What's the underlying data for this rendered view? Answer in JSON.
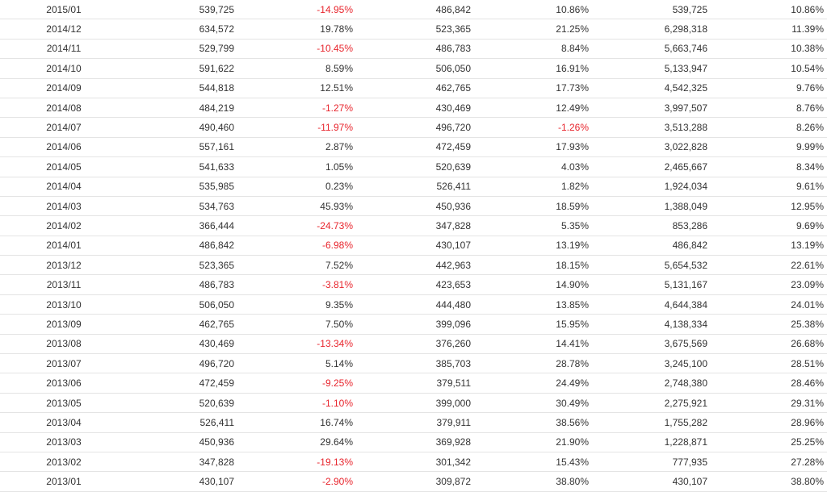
{
  "colors": {
    "text": "#333333",
    "negative": "#e8252d",
    "row_border": "#e4e4e4"
  },
  "rows": [
    {
      "month": "2015/01",
      "v1": "539,725",
      "p1": "-14.95%",
      "v2": "486,842",
      "p2": "10.86%",
      "v3": "539,725",
      "p3": "10.86%"
    },
    {
      "month": "2014/12",
      "v1": "634,572",
      "p1": "19.78%",
      "v2": "523,365",
      "p2": "21.25%",
      "v3": "6,298,318",
      "p3": "11.39%"
    },
    {
      "month": "2014/11",
      "v1": "529,799",
      "p1": "-10.45%",
      "v2": "486,783",
      "p2": "8.84%",
      "v3": "5,663,746",
      "p3": "10.38%"
    },
    {
      "month": "2014/10",
      "v1": "591,622",
      "p1": "8.59%",
      "v2": "506,050",
      "p2": "16.91%",
      "v3": "5,133,947",
      "p3": "10.54%"
    },
    {
      "month": "2014/09",
      "v1": "544,818",
      "p1": "12.51%",
      "v2": "462,765",
      "p2": "17.73%",
      "v3": "4,542,325",
      "p3": "9.76%"
    },
    {
      "month": "2014/08",
      "v1": "484,219",
      "p1": "-1.27%",
      "v2": "430,469",
      "p2": "12.49%",
      "v3": "3,997,507",
      "p3": "8.76%"
    },
    {
      "month": "2014/07",
      "v1": "490,460",
      "p1": "-11.97%",
      "v2": "496,720",
      "p2": "-1.26%",
      "v3": "3,513,288",
      "p3": "8.26%"
    },
    {
      "month": "2014/06",
      "v1": "557,161",
      "p1": "2.87%",
      "v2": "472,459",
      "p2": "17.93%",
      "v3": "3,022,828",
      "p3": "9.99%"
    },
    {
      "month": "2014/05",
      "v1": "541,633",
      "p1": "1.05%",
      "v2": "520,639",
      "p2": "4.03%",
      "v3": "2,465,667",
      "p3": "8.34%"
    },
    {
      "month": "2014/04",
      "v1": "535,985",
      "p1": "0.23%",
      "v2": "526,411",
      "p2": "1.82%",
      "v3": "1,924,034",
      "p3": "9.61%"
    },
    {
      "month": "2014/03",
      "v1": "534,763",
      "p1": "45.93%",
      "v2": "450,936",
      "p2": "18.59%",
      "v3": "1,388,049",
      "p3": "12.95%"
    },
    {
      "month": "2014/02",
      "v1": "366,444",
      "p1": "-24.73%",
      "v2": "347,828",
      "p2": "5.35%",
      "v3": "853,286",
      "p3": "9.69%"
    },
    {
      "month": "2014/01",
      "v1": "486,842",
      "p1": "-6.98%",
      "v2": "430,107",
      "p2": "13.19%",
      "v3": "486,842",
      "p3": "13.19%"
    },
    {
      "month": "2013/12",
      "v1": "523,365",
      "p1": "7.52%",
      "v2": "442,963",
      "p2": "18.15%",
      "v3": "5,654,532",
      "p3": "22.61%"
    },
    {
      "month": "2013/11",
      "v1": "486,783",
      "p1": "-3.81%",
      "v2": "423,653",
      "p2": "14.90%",
      "v3": "5,131,167",
      "p3": "23.09%"
    },
    {
      "month": "2013/10",
      "v1": "506,050",
      "p1": "9.35%",
      "v2": "444,480",
      "p2": "13.85%",
      "v3": "4,644,384",
      "p3": "24.01%"
    },
    {
      "month": "2013/09",
      "v1": "462,765",
      "p1": "7.50%",
      "v2": "399,096",
      "p2": "15.95%",
      "v3": "4,138,334",
      "p3": "25.38%"
    },
    {
      "month": "2013/08",
      "v1": "430,469",
      "p1": "-13.34%",
      "v2": "376,260",
      "p2": "14.41%",
      "v3": "3,675,569",
      "p3": "26.68%"
    },
    {
      "month": "2013/07",
      "v1": "496,720",
      "p1": "5.14%",
      "v2": "385,703",
      "p2": "28.78%",
      "v3": "3,245,100",
      "p3": "28.51%"
    },
    {
      "month": "2013/06",
      "v1": "472,459",
      "p1": "-9.25%",
      "v2": "379,511",
      "p2": "24.49%",
      "v3": "2,748,380",
      "p3": "28.46%"
    },
    {
      "month": "2013/05",
      "v1": "520,639",
      "p1": "-1.10%",
      "v2": "399,000",
      "p2": "30.49%",
      "v3": "2,275,921",
      "p3": "29.31%"
    },
    {
      "month": "2013/04",
      "v1": "526,411",
      "p1": "16.74%",
      "v2": "379,911",
      "p2": "38.56%",
      "v3": "1,755,282",
      "p3": "28.96%"
    },
    {
      "month": "2013/03",
      "v1": "450,936",
      "p1": "29.64%",
      "v2": "369,928",
      "p2": "21.90%",
      "v3": "1,228,871",
      "p3": "25.25%"
    },
    {
      "month": "2013/02",
      "v1": "347,828",
      "p1": "-19.13%",
      "v2": "301,342",
      "p2": "15.43%",
      "v3": "777,935",
      "p3": "27.28%"
    },
    {
      "month": "2013/01",
      "v1": "430,107",
      "p1": "-2.90%",
      "v2": "309,872",
      "p2": "38.80%",
      "v3": "430,107",
      "p3": "38.80%"
    }
  ]
}
